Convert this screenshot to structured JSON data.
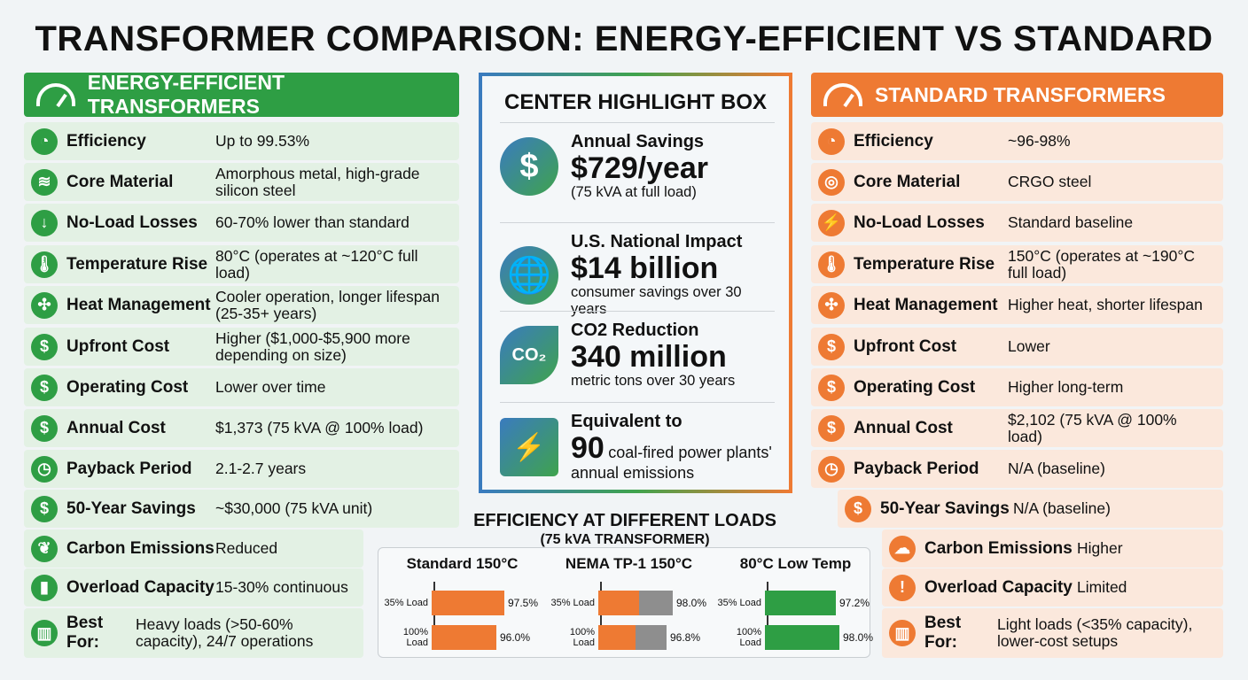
{
  "title": "TRANSFORMER COMPARISON: ENERGY-EFFICIENT VS STANDARD",
  "left": {
    "header": "ENERGY-EFFICIENT TRANSFORMERS",
    "color": "#2e9e44",
    "rows": [
      {
        "icon": "gauge-icon",
        "glyph": "◔",
        "label": "Efficiency",
        "value": "Up to 99.53%"
      },
      {
        "icon": "layers-icon",
        "glyph": "≋",
        "label": "Core Material",
        "value": "Amorphous metal, high-grade silicon steel"
      },
      {
        "icon": "down-bolt-icon",
        "glyph": "↓",
        "label": "No-Load Losses",
        "value": "60-70% lower than standard"
      },
      {
        "icon": "thermometer-icon",
        "glyph": "🌡",
        "label": "Temperature Rise",
        "value": "80°C (operates at ~120°C full load)"
      },
      {
        "icon": "fan-icon",
        "glyph": "✣",
        "label": "Heat Management",
        "value": "Cooler operation, longer lifespan (25-35+ years)"
      },
      {
        "icon": "dollar-icon",
        "glyph": "$",
        "label": "Upfront Cost",
        "value": "Higher ($1,000-$5,900 more depending on size)"
      },
      {
        "icon": "dollar-clock-icon",
        "glyph": "$",
        "label": "Operating Cost",
        "value": "Lower over time"
      },
      {
        "icon": "dollar-icon",
        "glyph": "$",
        "label": "Annual Cost",
        "value": "$1,373 (75 kVA @ 100% load)"
      },
      {
        "icon": "calendar-clock-icon",
        "glyph": "◷",
        "label": "Payback Period",
        "value": "2.1-2.7 years"
      },
      {
        "icon": "coins-icon",
        "glyph": "$",
        "label": "50-Year Savings",
        "value": "~$30,000 (75 kVA unit)"
      },
      {
        "icon": "co2-leaf-icon",
        "glyph": "❦",
        "label": "Carbon Emissions",
        "value": "Reduced"
      },
      {
        "icon": "battery-icon",
        "glyph": "▮",
        "label": "Overload Capacity",
        "value": "15-30% continuous"
      },
      {
        "icon": "buildings-icon",
        "glyph": "▥",
        "label": "Best For:",
        "value": "Heavy loads (>50-60% capacity), 24/7 operations"
      }
    ]
  },
  "right": {
    "header": "STANDARD TRANSFORMERS",
    "color": "#ee7a33",
    "rows": [
      {
        "icon": "gauge-icon",
        "glyph": "◔",
        "label": "Efficiency",
        "value": "~96-98%"
      },
      {
        "icon": "steel-coil-icon",
        "glyph": "◎",
        "label": "Core Material",
        "value": "CRGO steel"
      },
      {
        "icon": "bolt-icon",
        "glyph": "⚡",
        "label": "No-Load Losses",
        "value": "Standard baseline"
      },
      {
        "icon": "thermometer-icon",
        "glyph": "🌡",
        "label": "Temperature Rise",
        "value": "150°C (operates at ~190°C full load)"
      },
      {
        "icon": "heat-fan-icon",
        "glyph": "✣",
        "label": "Heat Management",
        "value": "Higher heat, shorter lifespan"
      },
      {
        "icon": "dollar-icon",
        "glyph": "$",
        "label": "Upfront Cost",
        "value": "Lower"
      },
      {
        "icon": "dollar-clock-icon",
        "glyph": "$",
        "label": "Operating Cost",
        "value": "Higher long-term"
      },
      {
        "icon": "dollar-icon",
        "glyph": "$",
        "label": "Annual Cost",
        "value": "$2,102 (75 kVA @ 100% load)"
      },
      {
        "icon": "calendar-clock-icon",
        "glyph": "◷",
        "label": "Payback Period",
        "value": "N/A (baseline)"
      },
      {
        "icon": "coins-icon",
        "glyph": "$",
        "label": "50-Year Savings",
        "value": "N/A (baseline)"
      },
      {
        "icon": "co2-cloud-icon",
        "glyph": "☁",
        "label": "Carbon Emissions",
        "value": "Higher"
      },
      {
        "icon": "battery-warning-icon",
        "glyph": "!",
        "label": "Overload Capacity",
        "value": "Limited"
      },
      {
        "icon": "factory-icon",
        "glyph": "▥",
        "label": "Best For:",
        "value": "Light loads (<35% capacity), lower-cost setups"
      }
    ]
  },
  "center": {
    "title": "CENTER HIGHLIGHT BOX",
    "items": [
      {
        "icon": "dollar-icon",
        "glyph": "$",
        "heading": "Annual Savings",
        "big": "$729/year",
        "sub": "(75 kVA at full load)"
      },
      {
        "icon": "globe-dollar-icon",
        "glyph": "🌐",
        "heading": "U.S. National Impact",
        "big": "$14 billion",
        "sub": "consumer savings over 30 years"
      },
      {
        "icon": "co2-leaf-icon",
        "glyph": "CO₂",
        "heading": "CO2 Reduction",
        "big": "340 million",
        "sub": "metric tons over 30 years"
      },
      {
        "icon": "power-plant-icon",
        "glyph": "⚡",
        "heading": "Equivalent to",
        "big": "90",
        "sub": "coal-fired power plants' annual emissions"
      }
    ]
  },
  "chart_data": {
    "type": "bar",
    "title": "EFFICIENCY AT DIFFERENT LOADS",
    "subtitle": "(75 kVA TRANSFORMER)",
    "categories": [
      "35% Load",
      "100% Load"
    ],
    "panels": [
      {
        "name": "Standard 150°C",
        "color": "#ee7a33",
        "values": [
          97.5,
          96.0
        ],
        "labels": [
          "97.5%",
          "96.0%"
        ]
      },
      {
        "name": "NEMA TP-1 150°C",
        "color": "#ee7a33",
        "secondary_color": "#8e8e8e",
        "values": [
          98.0,
          96.8
        ],
        "labels": [
          "98.0%",
          "96.8%"
        ]
      },
      {
        "name": "80°C Low Temp",
        "color": "#2e9e44",
        "values": [
          97.2,
          98.0
        ],
        "labels": [
          "97.2%",
          "98.0%"
        ]
      }
    ]
  }
}
